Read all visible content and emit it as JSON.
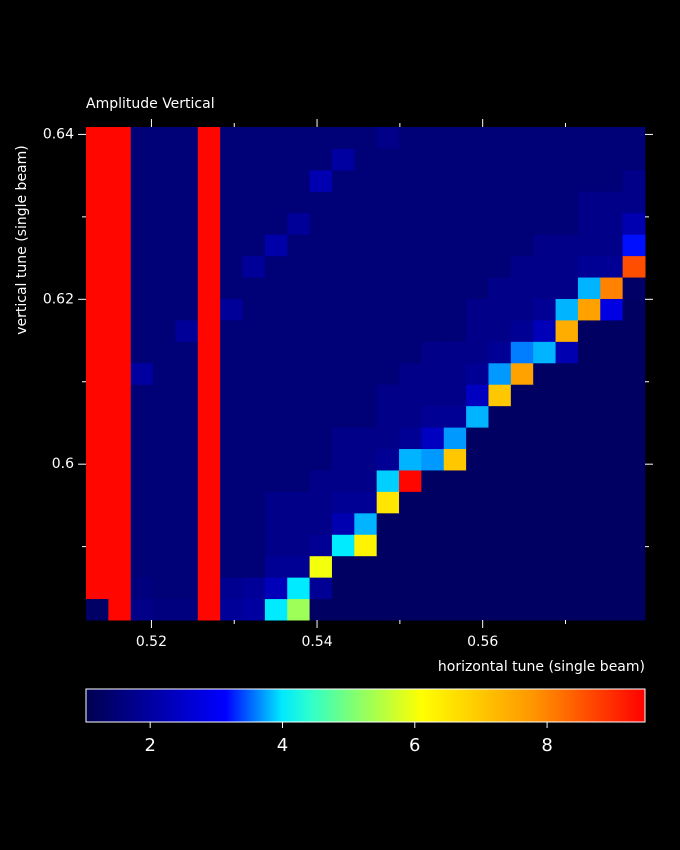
{
  "chart_data": {
    "type": "heatmap",
    "title": "Amplitude Vertical",
    "x_label": "horizontal tune (single beam)",
    "y_label": "vertical tune (single beam)",
    "x": [
      0.51345,
      0.51615,
      0.51885,
      0.52155,
      0.52425,
      0.52695,
      0.52965,
      0.53235,
      0.53505,
      0.53775,
      0.54045,
      0.54315,
      0.54585,
      0.54855,
      0.55125,
      0.55395,
      0.55665,
      0.55935,
      0.56205,
      0.56475,
      0.56745,
      0.57015,
      0.57285,
      0.57555,
      0.57825
    ],
    "y": [
      0.5824,
      0.585,
      0.5876,
      0.5902,
      0.5928,
      0.5954,
      0.598,
      0.6006,
      0.6032,
      0.6058,
      0.6084,
      0.611,
      0.6136,
      0.6162,
      0.6188,
      0.6214,
      0.624,
      0.6266,
      0.6292,
      0.6318,
      0.6344,
      0.637,
      0.6396
    ],
    "z": [
      [
        1.3,
        9.4,
        1.7,
        1.6,
        1.6,
        9.4,
        1.9,
        2.0,
        4.0,
        5.3,
        1.25,
        1.25,
        1.25,
        1.25,
        1.25,
        1.25,
        1.25,
        1.25,
        1.25,
        1.25,
        1.25,
        1.25,
        1.25,
        1.25,
        1.25
      ],
      [
        9.4,
        9.4,
        1.6,
        1.5,
        1.5,
        9.4,
        1.8,
        1.9,
        2.3,
        4.0,
        1.85,
        1.25,
        1.25,
        1.25,
        1.25,
        1.25,
        1.25,
        1.25,
        1.25,
        1.25,
        1.25,
        1.25,
        1.25,
        1.25,
        1.25
      ],
      [
        9.4,
        9.4,
        1.5,
        1.5,
        1.5,
        9.4,
        1.5,
        1.5,
        1.85,
        1.85,
        6.0,
        1.25,
        1.25,
        1.25,
        1.25,
        1.25,
        1.25,
        1.25,
        1.25,
        1.25,
        1.25,
        1.25,
        1.25,
        1.25,
        1.25
      ],
      [
        9.4,
        9.4,
        1.5,
        1.5,
        1.5,
        9.4,
        1.5,
        1.5,
        1.7,
        1.7,
        1.85,
        4.0,
        6.3,
        1.25,
        1.25,
        1.25,
        1.25,
        1.25,
        1.25,
        1.25,
        1.25,
        1.25,
        1.25,
        1.25,
        1.25
      ],
      [
        9.4,
        9.4,
        1.5,
        1.5,
        1.5,
        9.4,
        1.5,
        1.5,
        1.7,
        1.7,
        1.7,
        2.2,
        3.8,
        1.25,
        1.25,
        1.25,
        1.25,
        1.25,
        1.25,
        1.25,
        1.25,
        1.25,
        1.25,
        1.25,
        1.25
      ],
      [
        9.4,
        9.4,
        1.5,
        1.5,
        1.5,
        9.4,
        1.5,
        1.5,
        1.7,
        1.7,
        1.7,
        1.85,
        1.85,
        6.5,
        1.25,
        1.25,
        1.25,
        1.25,
        1.25,
        1.25,
        1.25,
        1.25,
        1.25,
        1.25,
        1.25
      ],
      [
        9.4,
        9.4,
        1.5,
        1.5,
        1.5,
        9.4,
        1.5,
        1.5,
        1.5,
        1.5,
        1.7,
        1.7,
        1.7,
        3.9,
        9.4,
        1.25,
        1.25,
        1.25,
        1.25,
        1.25,
        1.25,
        1.25,
        1.25,
        1.25,
        1.25
      ],
      [
        9.4,
        9.4,
        1.5,
        1.5,
        1.5,
        9.4,
        1.5,
        1.5,
        1.5,
        1.5,
        1.5,
        1.7,
        1.7,
        1.85,
        3.8,
        3.7,
        7.0,
        1.25,
        1.25,
        1.25,
        1.25,
        1.25,
        1.25,
        1.25,
        1.25
      ],
      [
        9.4,
        9.4,
        1.5,
        1.5,
        1.5,
        9.4,
        1.5,
        1.5,
        1.5,
        1.5,
        1.5,
        1.7,
        1.7,
        1.7,
        1.85,
        2.4,
        3.7,
        1.25,
        1.25,
        1.25,
        1.25,
        1.25,
        1.25,
        1.25,
        1.25
      ],
      [
        9.4,
        9.4,
        1.5,
        1.5,
        1.5,
        9.4,
        1.5,
        1.5,
        1.5,
        1.5,
        1.5,
        1.5,
        1.5,
        1.7,
        1.7,
        1.85,
        1.85,
        3.8,
        1.25,
        1.25,
        1.25,
        1.25,
        1.25,
        1.25,
        1.25
      ],
      [
        9.4,
        9.4,
        1.5,
        1.5,
        1.5,
        9.4,
        1.5,
        1.5,
        1.5,
        1.5,
        1.5,
        1.5,
        1.5,
        1.7,
        1.7,
        1.7,
        1.7,
        2.4,
        7.0,
        1.25,
        1.25,
        1.25,
        1.25,
        1.25,
        1.25
      ],
      [
        9.4,
        9.4,
        2.0,
        1.5,
        1.5,
        9.4,
        1.5,
        1.5,
        1.5,
        1.5,
        1.5,
        1.5,
        1.5,
        1.5,
        1.7,
        1.7,
        1.7,
        1.85,
        3.7,
        7.6,
        1.25,
        1.25,
        1.25,
        1.25,
        1.25
      ],
      [
        9.4,
        9.4,
        1.5,
        1.5,
        1.5,
        9.4,
        1.5,
        1.5,
        1.5,
        1.5,
        1.5,
        1.5,
        1.5,
        1.5,
        1.5,
        1.7,
        1.7,
        1.7,
        1.85,
        3.6,
        3.8,
        2.2,
        1.25,
        1.25,
        1.25
      ],
      [
        9.4,
        9.4,
        1.5,
        1.5,
        1.9,
        9.4,
        1.5,
        1.5,
        1.5,
        1.5,
        1.5,
        1.5,
        1.5,
        1.5,
        1.5,
        1.5,
        1.5,
        1.7,
        1.7,
        1.85,
        2.3,
        7.4,
        1.25,
        1.25,
        1.25
      ],
      [
        9.4,
        9.4,
        1.5,
        1.5,
        1.5,
        9.4,
        1.9,
        1.5,
        1.5,
        1.5,
        1.5,
        1.5,
        1.5,
        1.5,
        1.5,
        1.5,
        1.5,
        1.7,
        1.7,
        1.7,
        1.85,
        3.8,
        7.6,
        2.8,
        1.25
      ],
      [
        9.4,
        9.4,
        1.5,
        1.5,
        1.5,
        9.4,
        1.5,
        1.5,
        1.5,
        1.5,
        1.5,
        1.5,
        1.5,
        1.5,
        1.5,
        1.5,
        1.5,
        1.5,
        1.7,
        1.7,
        1.7,
        1.7,
        3.8,
        8.0,
        1.3
      ],
      [
        9.4,
        9.4,
        1.5,
        1.5,
        1.5,
        9.4,
        1.5,
        1.9,
        1.5,
        1.5,
        1.5,
        1.5,
        1.5,
        1.5,
        1.5,
        1.5,
        1.5,
        1.5,
        1.5,
        1.7,
        1.7,
        1.7,
        1.85,
        1.85,
        8.6
      ],
      [
        9.4,
        9.4,
        1.5,
        1.5,
        1.5,
        9.4,
        1.5,
        1.5,
        2.1,
        1.5,
        1.5,
        1.5,
        1.5,
        1.5,
        1.5,
        1.5,
        1.5,
        1.5,
        1.5,
        1.5,
        1.7,
        1.7,
        1.7,
        1.7,
        3.2
      ],
      [
        9.4,
        9.4,
        1.5,
        1.5,
        1.5,
        9.4,
        1.5,
        1.5,
        1.5,
        1.9,
        1.5,
        1.5,
        1.5,
        1.5,
        1.5,
        1.5,
        1.5,
        1.5,
        1.5,
        1.5,
        1.5,
        1.5,
        1.7,
        1.7,
        2.2
      ],
      [
        9.4,
        9.4,
        1.5,
        1.5,
        1.5,
        9.4,
        1.5,
        1.5,
        1.5,
        1.5,
        1.5,
        1.5,
        1.5,
        1.5,
        1.5,
        1.5,
        1.5,
        1.5,
        1.5,
        1.5,
        1.5,
        1.5,
        1.7,
        1.7,
        1.7
      ],
      [
        9.4,
        9.4,
        1.5,
        1.5,
        1.5,
        9.4,
        1.5,
        1.5,
        1.5,
        1.5,
        2.2,
        1.5,
        1.5,
        1.5,
        1.5,
        1.5,
        1.5,
        1.5,
        1.5,
        1.5,
        1.5,
        1.5,
        1.5,
        1.5,
        1.7
      ],
      [
        9.4,
        9.4,
        1.5,
        1.5,
        1.5,
        9.4,
        1.5,
        1.5,
        1.5,
        1.5,
        1.5,
        2.0,
        1.5,
        1.5,
        1.5,
        1.5,
        1.5,
        1.5,
        1.5,
        1.5,
        1.5,
        1.5,
        1.5,
        1.5,
        1.5
      ],
      [
        9.4,
        9.4,
        1.5,
        1.5,
        1.5,
        9.4,
        1.5,
        1.5,
        1.5,
        1.5,
        1.5,
        1.5,
        1.5,
        1.7,
        1.5,
        1.5,
        1.5,
        1.5,
        1.5,
        1.5,
        1.5,
        1.5,
        1.5,
        1.5,
        1.5
      ]
    ],
    "colormap": "jet",
    "xlim": [
      0.5121,
      0.5796
    ],
    "ylim": [
      0.5811,
      0.6409
    ],
    "xticks": [
      0.52,
      0.54,
      0.56
    ],
    "yticks": [
      0.6,
      0.62,
      0.64
    ],
    "xminorticks": [
      0.53,
      0.55,
      0.57
    ],
    "yminorticks": [
      0.59,
      0.61,
      0.63
    ],
    "clim": [
      1.03,
      9.48
    ],
    "cticks": [
      2,
      4,
      6,
      8
    ]
  }
}
